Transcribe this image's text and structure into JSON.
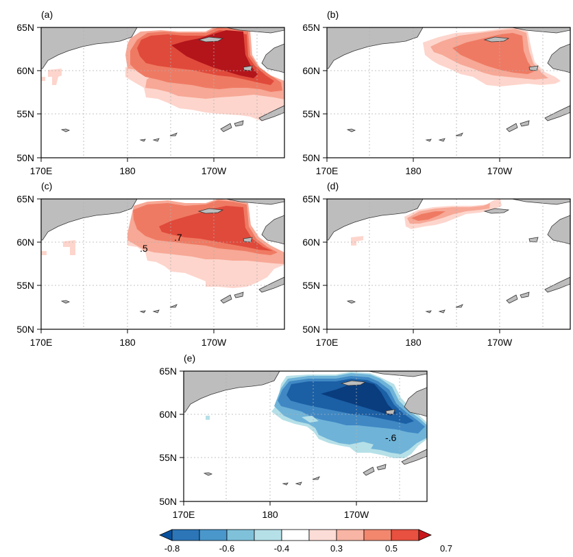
{
  "panels": [
    {
      "id": "a",
      "label": "(a)"
    },
    {
      "id": "b",
      "label": "(b)"
    },
    {
      "id": "c",
      "label": "(c)"
    },
    {
      "id": "d",
      "label": "(d)"
    },
    {
      "id": "e",
      "label": "(e)"
    }
  ],
  "axes": {
    "lon_ticks": [
      "170E",
      "180",
      "170W"
    ],
    "lat_ticks": [
      "65N",
      "60N",
      "55N",
      "50N"
    ],
    "lon_range": [
      "170E",
      "155W"
    ],
    "lat_range": [
      "50N",
      "65N"
    ],
    "grid": "dotted"
  },
  "contour_labels": {
    "c_high": ".7",
    "c_mid": ".5",
    "e_neg": "-.6"
  },
  "colorbar": {
    "labels": [
      "-0.8",
      "-0.6",
      "-0.4",
      "0.3",
      "0.5",
      "0.7"
    ],
    "colors": [
      "#08519c",
      "#2c76b8",
      "#4a97cb",
      "#7fc1d9",
      "#b6e0e8",
      "#ffffff",
      "#fcdcd6",
      "#f8b4a4",
      "#f2876e",
      "#e8503f",
      "#c8171c"
    ]
  },
  "colors": {
    "land": "#bdbdbd",
    "pos": [
      "#fdd5cc",
      "#f7a896",
      "#ef7a63",
      "#e04a3b",
      "#b3151b"
    ],
    "neg": [
      "#b6e0e8",
      "#6fb3d8",
      "#3f88c4",
      "#1b5fa5",
      "#0a3d7e"
    ]
  }
}
